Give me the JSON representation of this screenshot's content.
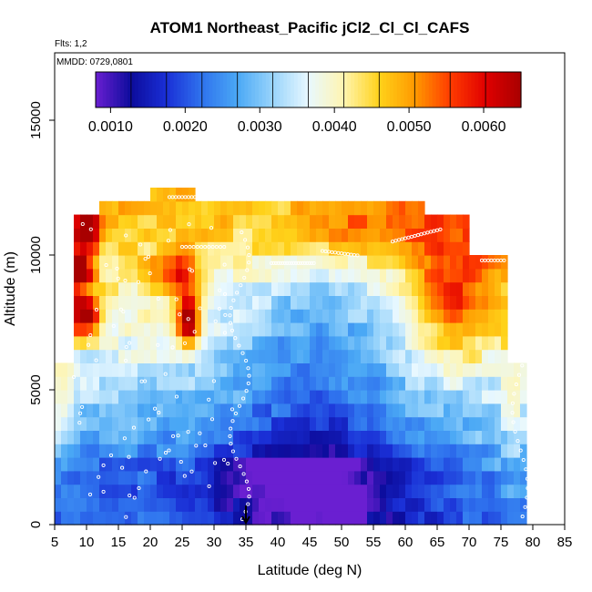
{
  "chart_data": {
    "type": "heatmap",
    "title": "ATOM1 Northeast_Pacific jCl2_Cl_Cl_CAFS",
    "flights_label": "Flts: 1,2",
    "date_label": "MMDD: 0729,0801",
    "xlabel": "Latitude (deg N)",
    "ylabel": "Altitude (m)",
    "xlim": [
      5,
      85
    ],
    "ylim": [
      0,
      17500
    ],
    "x_ticks": [
      5,
      10,
      15,
      20,
      25,
      30,
      35,
      40,
      45,
      50,
      55,
      60,
      65,
      70,
      75,
      80,
      85
    ],
    "x_tick_labels": [
      "5",
      "10",
      "15",
      "20",
      "25",
      "30",
      "35",
      "40",
      "45",
      "50",
      "55",
      "60",
      "65",
      "70",
      "75",
      "80",
      "85"
    ],
    "y_ticks": [
      0,
      5000,
      10000,
      15000
    ],
    "y_tick_labels": [
      "0",
      "5000",
      "10000",
      "15000"
    ],
    "colorbar": {
      "min": 0.0008,
      "max": 0.0065,
      "ticks": [
        0.001,
        0.002,
        0.003,
        0.004,
        0.005,
        0.006
      ],
      "tick_labels": [
        "0.0010",
        "0.0020",
        "0.0030",
        "0.0040",
        "0.0050",
        "0.0060"
      ],
      "colors": [
        "#6a1fd1",
        "#0c0c9c",
        "#1a2fd6",
        "#2f73ee",
        "#4aa8f5",
        "#99d4fb",
        "#e8f8ff",
        "#fff5b0",
        "#ffd21a",
        "#ff9a00",
        "#ff3c00",
        "#e00000",
        "#a80000"
      ]
    },
    "marker": {
      "latitude": 35,
      "label": "arrow"
    },
    "field": {
      "lat_min": 5,
      "lat_max": 79,
      "lat_step": 1,
      "alt_min": 0,
      "alt_max": 12500,
      "alt_step": 500,
      "description": "Approximate jCl2 values (s^-1) on a latitude-altitude grid"
    }
  }
}
